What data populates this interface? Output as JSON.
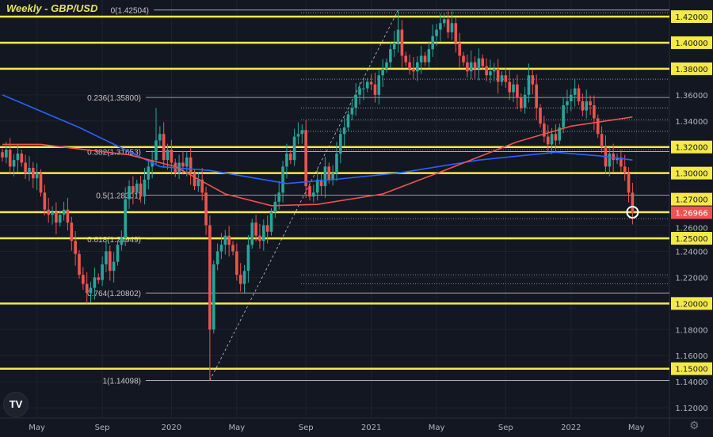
{
  "chart_data": {
    "type": "candlestick",
    "title": "Weekly - GBP/USD",
    "ylim": [
      1.11,
      1.4345
    ],
    "y_ticks": [
      1.42,
      1.4,
      1.38,
      1.36,
      1.34,
      1.32,
      1.3,
      1.27,
      1.26,
      1.25,
      1.24,
      1.22,
      1.2,
      1.18,
      1.16,
      1.15,
      1.14,
      1.12
    ],
    "y_tick_labels": [
      "1.42000",
      "1.40000",
      "1.38000",
      "1.36000",
      "1.34000",
      "1.32000",
      "1.30000",
      "1.27000",
      "1.26000",
      "1.25000",
      "1.24000",
      "1.22000",
      "1.20000",
      "1.18000",
      "1.16000",
      "1.15000",
      "1.14000",
      "1.12000"
    ],
    "highlighted_levels": [
      1.42,
      1.4,
      1.38,
      1.32,
      1.3,
      1.27,
      1.25,
      1.2,
      1.15
    ],
    "last_price": {
      "value": 1.26966,
      "label": "1.26966",
      "color": "#ef5350"
    },
    "x_labels": [
      {
        "week": 9,
        "label": "May"
      },
      {
        "week": 26,
        "label": "Sep"
      },
      {
        "week": 44,
        "label": "2020"
      },
      {
        "week": 61,
        "label": "May"
      },
      {
        "week": 79,
        "label": "Sep"
      },
      {
        "week": 96,
        "label": "2021"
      },
      {
        "week": 113,
        "label": "May"
      },
      {
        "week": 131,
        "label": "Sep"
      },
      {
        "week": 148,
        "label": "2022"
      },
      {
        "week": 165,
        "label": "May"
      }
    ],
    "closes": [
      1.312,
      1.318,
      1.305,
      1.31,
      1.315,
      1.308,
      1.3,
      1.304,
      1.296,
      1.3,
      1.285,
      1.272,
      1.268,
      1.27,
      1.262,
      1.268,
      1.272,
      1.262,
      1.248,
      1.238,
      1.222,
      1.215,
      1.208,
      1.212,
      1.22,
      1.218,
      1.23,
      1.24,
      1.225,
      1.232,
      1.245,
      1.25,
      1.28,
      1.29,
      1.285,
      1.292,
      1.282,
      1.295,
      1.305,
      1.31,
      1.325,
      1.33,
      1.31,
      1.318,
      1.308,
      1.3,
      1.308,
      1.305,
      1.312,
      1.3,
      1.29,
      1.295,
      1.285,
      1.26,
      1.18,
      1.23,
      1.24,
      1.245,
      1.252,
      1.245,
      1.24,
      1.222,
      1.215,
      1.225,
      1.245,
      1.262,
      1.252,
      1.248,
      1.26,
      1.255,
      1.27,
      1.278,
      1.285,
      1.305,
      1.315,
      1.31,
      1.328,
      1.33,
      1.333,
      1.29,
      1.282,
      1.285,
      1.295,
      1.29,
      1.305,
      1.295,
      1.3,
      1.315,
      1.33,
      1.335,
      1.345,
      1.35,
      1.36,
      1.365,
      1.365,
      1.37,
      1.368,
      1.36,
      1.375,
      1.38,
      1.385,
      1.395,
      1.4,
      1.41,
      1.39,
      1.385,
      1.38,
      1.378,
      1.385,
      1.39,
      1.385,
      1.395,
      1.405,
      1.41,
      1.415,
      1.418,
      1.408,
      1.415,
      1.4,
      1.39,
      1.385,
      1.378,
      1.385,
      1.38,
      1.388,
      1.382,
      1.375,
      1.378,
      1.38,
      1.37,
      1.375,
      1.37,
      1.362,
      1.368,
      1.358,
      1.35,
      1.36,
      1.375,
      1.368,
      1.35,
      1.338,
      1.328,
      1.322,
      1.33,
      1.325,
      1.335,
      1.352,
      1.355,
      1.36,
      1.365,
      1.355,
      1.348,
      1.355,
      1.352,
      1.342,
      1.33,
      1.32,
      1.305,
      1.315,
      1.31,
      1.312,
      1.305,
      1.3,
      1.285,
      1.26966
    ],
    "extremes": [
      {
        "week": 40,
        "high": 1.35
      },
      {
        "week": 54,
        "low": 1.14098
      },
      {
        "week": 103,
        "high": 1.42504
      },
      {
        "week": 115,
        "high": 1.4225
      },
      {
        "week": 22,
        "low": 1.2
      }
    ],
    "series": [
      {
        "name": "Moving average (blue)",
        "color": "#2962ff",
        "points": [
          [
            0,
            1.36
          ],
          [
            20,
            1.335
          ],
          [
            41,
            1.305
          ],
          [
            54,
            1.302
          ],
          [
            74,
            1.292
          ],
          [
            86,
            1.295
          ],
          [
            103,
            1.3
          ],
          [
            124,
            1.31
          ],
          [
            144,
            1.316
          ],
          [
            156,
            1.313
          ],
          [
            164,
            1.31
          ]
        ]
      },
      {
        "name": "Moving average (red)",
        "color": "#ef5350",
        "points": [
          [
            0,
            1.322
          ],
          [
            10,
            1.322
          ],
          [
            33,
            1.314
          ],
          [
            45,
            1.305
          ],
          [
            58,
            1.284
          ],
          [
            70,
            1.275
          ],
          [
            82,
            1.276
          ],
          [
            99,
            1.284
          ],
          [
            115,
            1.302
          ],
          [
            134,
            1.324
          ],
          [
            148,
            1.336
          ],
          [
            164,
            1.343
          ]
        ]
      }
    ],
    "fibonacci": [
      {
        "label": "0(1.42504)",
        "value": 1.42504
      },
      {
        "label": "0.236(1.35800)",
        "value": 1.358
      },
      {
        "label": "0.382(1.31653)",
        "value": 1.31653
      },
      {
        "label": "0.5(1.28301)",
        "value": 1.28301
      },
      {
        "label": "0.618(1.24949)",
        "value": 1.24949
      },
      {
        "label": "0.764(1.20802)",
        "value": 1.20802
      },
      {
        "label": "1(1.14098)",
        "value": 1.14098
      }
    ],
    "fib_trendline": {
      "from": {
        "week": 54,
        "value": 1.14098
      },
      "to": {
        "week": 103,
        "value": 1.42504
      }
    },
    "dotted_levels": [
      1.423,
      1.372,
      1.35,
      1.341,
      1.332,
      1.318,
      1.265,
      1.222,
      1.215
    ],
    "colors": {
      "up": "#26a69a",
      "down": "#ef5350",
      "level": "#f5e94a",
      "fib": "#c9c3c9",
      "background": "#131722"
    }
  },
  "logo": "TV"
}
